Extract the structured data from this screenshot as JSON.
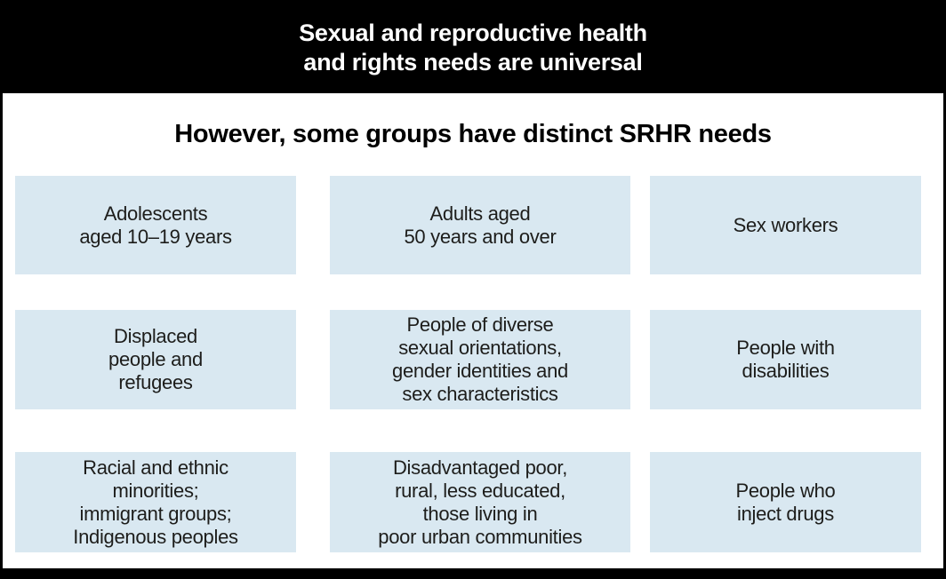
{
  "header": {
    "title": "Sexual and reproductive health\nand rights needs are universal",
    "subtitle": "However, some groups have distinct SRHR needs"
  },
  "groups": [
    {
      "label": "Adolescents\naged 10–19 years"
    },
    {
      "label": "Adults aged\n50 years and over"
    },
    {
      "label": "Sex workers"
    },
    {
      "label": "Displaced\npeople and\nrefugees"
    },
    {
      "label": "People of diverse\nsexual orientations,\ngender identities and\nsex characteristics"
    },
    {
      "label": "People with\ndisabilities"
    },
    {
      "label": "Racial and ethnic\nminorities;\nimmigrant groups;\nIndigenous peoples"
    },
    {
      "label": "Disadvantaged poor,\nrural, less educated,\nthose living in\npoor urban communities"
    },
    {
      "label": "People who\ninject drugs"
    }
  ],
  "colors": {
    "banner_background": "#000000",
    "banner_text": "#ffffff",
    "box_background": "#d9e8f1",
    "box_text": "#1d1d1b",
    "footer_bar": "#000000"
  }
}
